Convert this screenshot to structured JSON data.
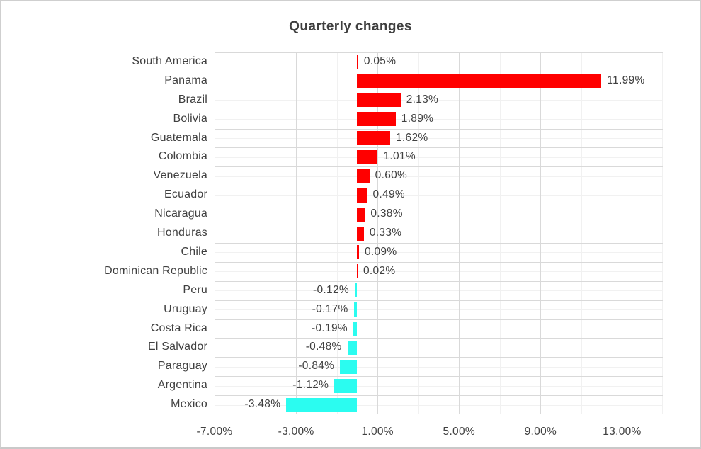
{
  "window": {
    "background": "#ffffff",
    "border_color": "#c9c9c9"
  },
  "chart_data": {
    "type": "bar",
    "orientation": "horizontal",
    "title": "Quarterly changes",
    "grid": true,
    "legend": false,
    "categories": [
      "South America",
      "Panama",
      "Brazil",
      "Bolivia",
      "Guatemala",
      "Colombia",
      "Venezuela",
      "Ecuador",
      "Nicaragua",
      "Honduras",
      "Chile",
      "Dominican Republic",
      "Peru",
      "Uruguay",
      "Costa Rica",
      "El Salvador",
      "Paraguay",
      "Argentina",
      "Mexico"
    ],
    "values": [
      0.05,
      11.99,
      2.13,
      1.89,
      1.62,
      1.01,
      0.6,
      0.49,
      0.38,
      0.33,
      0.09,
      0.02,
      -0.12,
      -0.17,
      -0.19,
      -0.48,
      -0.84,
      -1.12,
      -3.48
    ],
    "value_labels": [
      "0.05%",
      "11.99%",
      "2.13%",
      "1.89%",
      "1.62%",
      "1.01%",
      "0.60%",
      "0.49%",
      "0.38%",
      "0.33%",
      "0.09%",
      "0.02%",
      "-0.12%",
      "-0.17%",
      "-0.19%",
      "-0.48%",
      "-0.84%",
      "-1.12%",
      "-3.48%"
    ],
    "x_axis": {
      "min": -7,
      "max": 15,
      "major_tick_step": 4,
      "minor_gridline_step": 2,
      "tick_values": [
        -7,
        -3,
        1,
        5,
        9,
        13
      ],
      "tick_labels": [
        "-7.00%",
        "-3.00%",
        "1.00%",
        "5.00%",
        "9.00%",
        "13.00%"
      ]
    },
    "colors": {
      "positive_bar": "#ff0000",
      "negative_bar": "#2bfcf0",
      "text": "#404040",
      "gridline_major": "#d9d9d9",
      "gridline_minor": "#f1f1f1"
    }
  }
}
